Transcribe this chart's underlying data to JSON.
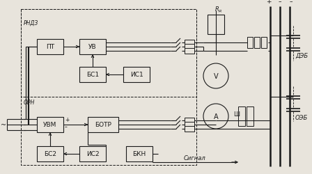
{
  "bg_color": "#e8e4dc",
  "line_color": "#1a1a1a",
  "box_fill": "#e8e4dc",
  "figsize": [
    4.48,
    2.51
  ],
  "dpi": 100,
  "blocks": {
    "PT": {
      "label": "ПТ"
    },
    "UV": {
      "label": "УВ"
    },
    "BU1": {
      "label": "БС1"
    },
    "IB1": {
      "label": "ИС1"
    },
    "UVM": {
      "label": "УВМ"
    },
    "BOTR": {
      "label": "БОТР"
    },
    "BU2": {
      "label": "БС2"
    },
    "IB2": {
      "label": "ИС2"
    },
    "BKN": {
      "label": "БКН"
    }
  }
}
